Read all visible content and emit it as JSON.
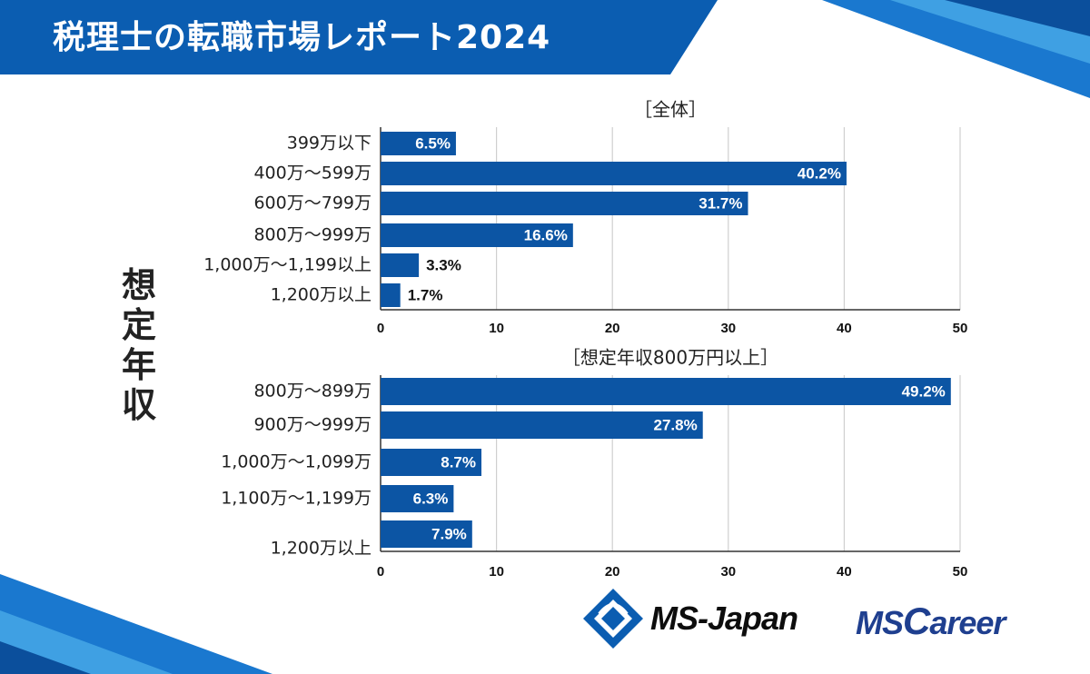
{
  "header": {
    "title": "税理士の転職市場レポート2024"
  },
  "colors": {
    "bar": "#0c55a4",
    "brand_blue": "#0b5db1",
    "grid": "#cfcfcf"
  },
  "y_axis_label": [
    "想",
    "定",
    "年",
    "収"
  ],
  "chart_data": [
    {
      "type": "bar",
      "orientation": "horizontal",
      "title": "［全体］",
      "categories": [
        "399万以下",
        "400万～599万",
        "600万～799万",
        "800万～999万",
        "1,000万～1,199以上",
        "1,200万以上"
      ],
      "values": [
        6.5,
        40.2,
        31.7,
        16.6,
        3.3,
        1.7
      ],
      "labels": [
        "6.5%",
        "40.2%",
        "31.7%",
        "16.6%",
        "3.3%",
        "1.7%"
      ],
      "xlim": [
        0,
        50
      ],
      "xticks": [
        "0",
        "10",
        "20",
        "30",
        "40",
        "50"
      ],
      "grid": true,
      "ylabel": "想定年収"
    },
    {
      "type": "bar",
      "orientation": "horizontal",
      "title": "［想定年収800万円以上］",
      "categories": [
        "800万～899万",
        "900万～999万",
        "1,000万～1,099万",
        "1,100万～1,199万",
        "1,200万以上"
      ],
      "values": [
        49.2,
        27.8,
        8.7,
        6.3,
        7.9
      ],
      "labels": [
        "49.2%",
        "27.8%",
        "8.7%",
        "6.3%",
        "7.9%"
      ],
      "xlim": [
        0,
        50
      ],
      "xticks": [
        "0",
        "10",
        "20",
        "30",
        "40",
        "50"
      ],
      "grid": true,
      "ylabel": "想定年収"
    }
  ],
  "logos": {
    "ms_japan": "MS-Japan",
    "ms_career_prefix": "MS",
    "ms_career_letter": "C",
    "ms_career_suffix": "areer"
  }
}
